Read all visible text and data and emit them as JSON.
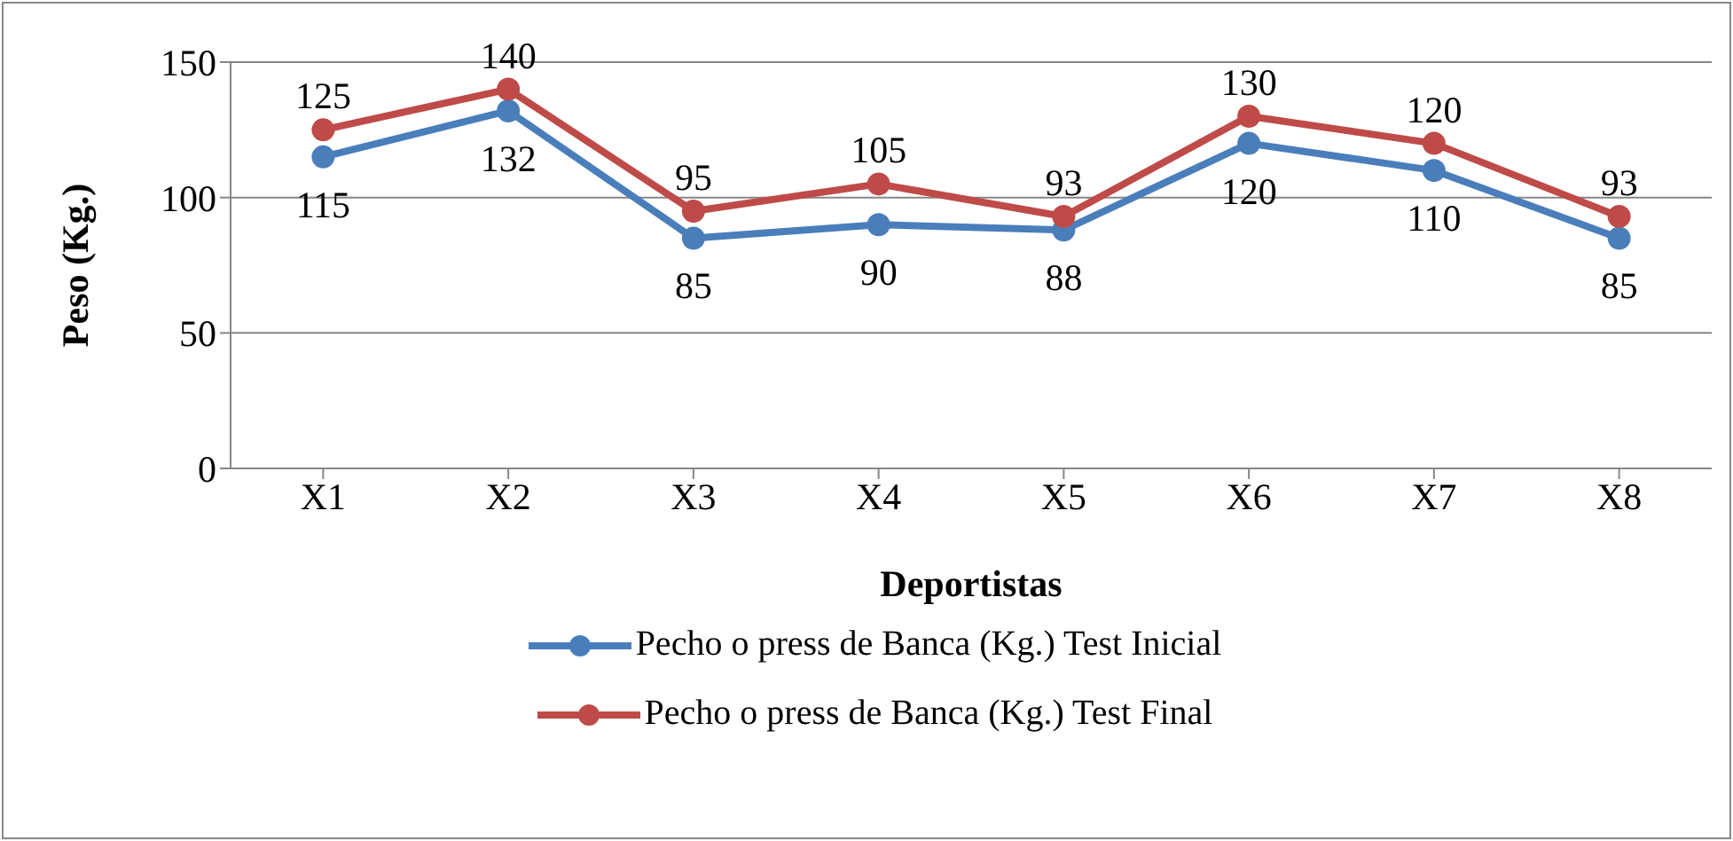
{
  "chart_data": {
    "type": "line",
    "xlabel": "Deportistas",
    "ylabel": "Peso (Kg.)",
    "categories": [
      "X1",
      "X2",
      "X3",
      "X4",
      "X5",
      "X6",
      "X7",
      "X8"
    ],
    "series": [
      {
        "name": "Pecho o press de Banca (Kg.) Test Inicial",
        "color": "#4a7ebb",
        "values": [
          115,
          132,
          85,
          90,
          88,
          120,
          110,
          85
        ]
      },
      {
        "name": "Pecho o press de Banca (Kg.) Test Final",
        "color": "#be4b48",
        "values": [
          125,
          140,
          95,
          105,
          93,
          130,
          120,
          93
        ]
      }
    ],
    "ylim": [
      0,
      150
    ],
    "yticks": [
      0,
      50,
      100,
      150
    ],
    "grid": "y",
    "legend": "bottom",
    "marker": "circle",
    "line_style": "solid",
    "data_labels": true
  }
}
